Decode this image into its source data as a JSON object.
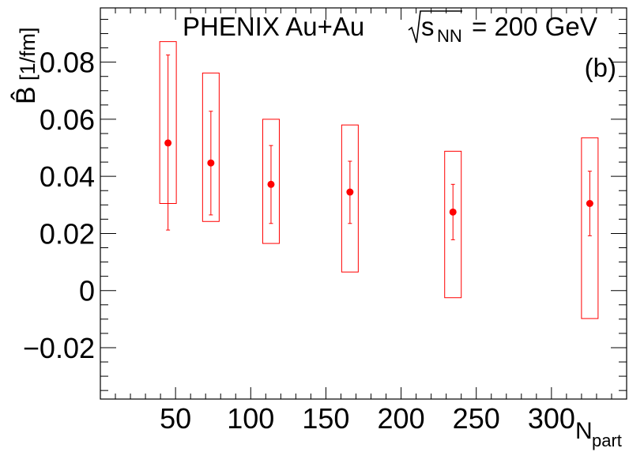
{
  "chart_data": {
    "type": "scatter",
    "title": "PHENIX Au+Au",
    "title_energy_symbol": "s",
    "title_energy_subscript": "NN",
    "title_energy_value": "= 200 GeV",
    "panel_label": "(b)",
    "xlabel_main": "N",
    "xlabel_sub": "part",
    "ylabel_main": "B̂",
    "ylabel_unit": "[1/fm]",
    "xlim": [
      0,
      350
    ],
    "ylim": [
      -0.038,
      0.099
    ],
    "x_ticks": [
      50,
      100,
      150,
      200,
      250,
      300
    ],
    "x_tick_labels": [
      "50",
      "100",
      "150",
      "200",
      "250",
      "300"
    ],
    "y_ticks": [
      -0.02,
      0,
      0.02,
      0.04,
      0.06,
      0.08
    ],
    "y_tick_labels": [
      "−0.02",
      "0",
      "0.02",
      "0.04",
      "0.06",
      "0.08"
    ],
    "grid": false,
    "marker_color": "#ff0000",
    "series": [
      {
        "points": [
          {
            "x": 45,
            "y": 0.0517,
            "stat_low": 0.0212,
            "stat_high": 0.0825,
            "sys_low": 0.0305,
            "sys_high": 0.0872
          },
          {
            "x": 73.5,
            "y": 0.0447,
            "stat_low": 0.0265,
            "stat_high": 0.0628,
            "sys_low": 0.0242,
            "sys_high": 0.0762
          },
          {
            "x": 113.5,
            "y": 0.0372,
            "stat_low": 0.0235,
            "stat_high": 0.0508,
            "sys_low": 0.0165,
            "sys_high": 0.06
          },
          {
            "x": 166,
            "y": 0.0345,
            "stat_low": 0.0235,
            "stat_high": 0.0453,
            "sys_low": 0.0065,
            "sys_high": 0.058
          },
          {
            "x": 234.5,
            "y": 0.0275,
            "stat_low": 0.0178,
            "stat_high": 0.0372,
            "sys_low": -0.0025,
            "sys_high": 0.0488
          },
          {
            "x": 325.5,
            "y": 0.0305,
            "stat_low": 0.0192,
            "stat_high": 0.0418,
            "sys_low": -0.0098,
            "sys_high": 0.0535
          }
        ]
      }
    ]
  }
}
